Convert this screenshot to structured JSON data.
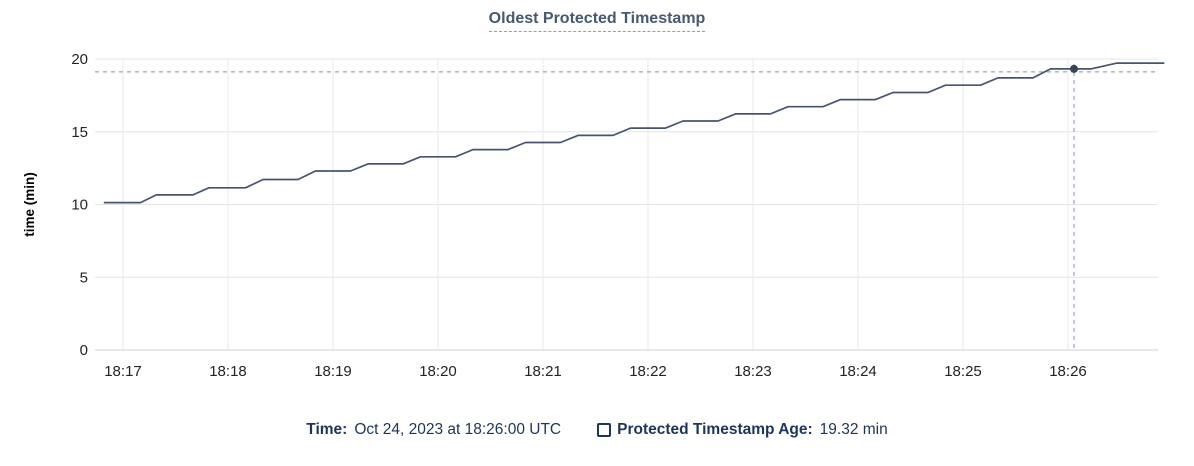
{
  "title": "Oldest Protected Timestamp",
  "colors": {
    "line": "#455571",
    "dot": "#394455",
    "crosshair": "#94a9bc",
    "grid_h": "#e4e4e4",
    "grid_v": "#eaeaea",
    "axis_zero": "#d2d2d2",
    "tick_text": "#242424",
    "axis_label_text": "#000000"
  },
  "chart_data": {
    "type": "line",
    "title": "Oldest Protected Timestamp",
    "xlabel": "",
    "ylabel": "time (min)",
    "ylim": [
      0,
      20
    ],
    "y_ticks": [
      0,
      5,
      10,
      15,
      20
    ],
    "x_ticks": [
      "18:17",
      "18:18",
      "18:19",
      "18:20",
      "18:21",
      "18:22",
      "18:23",
      "18:24",
      "18:25",
      "18:26"
    ],
    "grid": true,
    "legend_position": "bottom",
    "series": [
      {
        "name": "Protected Timestamp Age",
        "units": "min",
        "points": [
          [
            "18:16:49",
            10.13
          ],
          [
            "18:17:10",
            10.13
          ],
          [
            "18:17:19",
            10.66
          ],
          [
            "18:17:40",
            10.66
          ],
          [
            "18:17:49",
            11.15
          ],
          [
            "18:18:10",
            11.15
          ],
          [
            "18:18:20",
            11.72
          ],
          [
            "18:18:40",
            11.72
          ],
          [
            "18:18:50",
            12.3
          ],
          [
            "18:19:10",
            12.3
          ],
          [
            "18:19:20",
            12.79
          ],
          [
            "18:19:40",
            12.79
          ],
          [
            "18:19:50",
            13.28
          ],
          [
            "18:20:10",
            13.28
          ],
          [
            "18:20:20",
            13.77
          ],
          [
            "18:20:40",
            13.77
          ],
          [
            "18:20:50",
            14.26
          ],
          [
            "18:21:10",
            14.26
          ],
          [
            "18:21:20",
            14.75
          ],
          [
            "18:21:40",
            14.75
          ],
          [
            "18:21:50",
            15.25
          ],
          [
            "18:22:10",
            15.25
          ],
          [
            "18:22:20",
            15.74
          ],
          [
            "18:22:40",
            15.74
          ],
          [
            "18:22:50",
            16.23
          ],
          [
            "18:23:10",
            16.23
          ],
          [
            "18:23:20",
            16.72
          ],
          [
            "18:23:40",
            16.72
          ],
          [
            "18:23:50",
            17.21
          ],
          [
            "18:24:10",
            17.21
          ],
          [
            "18:24:20",
            17.7
          ],
          [
            "18:24:40",
            17.7
          ],
          [
            "18:24:50",
            18.2
          ],
          [
            "18:25:10",
            18.2
          ],
          [
            "18:25:20",
            18.7
          ],
          [
            "18:25:40",
            18.7
          ],
          [
            "18:25:50",
            19.32
          ],
          [
            "18:26:13",
            19.32
          ],
          [
            "18:26:28",
            19.72
          ],
          [
            "18:26:55",
            19.72
          ]
        ]
      }
    ],
    "crosshair": {
      "time": "18:26:00",
      "value": 19.32
    }
  },
  "legend": {
    "time_label": "Time:",
    "time_value": "Oct 24, 2023 at 18:26:00 UTC",
    "series_label": "Protected Timestamp Age:",
    "series_value": "19.32 min"
  }
}
